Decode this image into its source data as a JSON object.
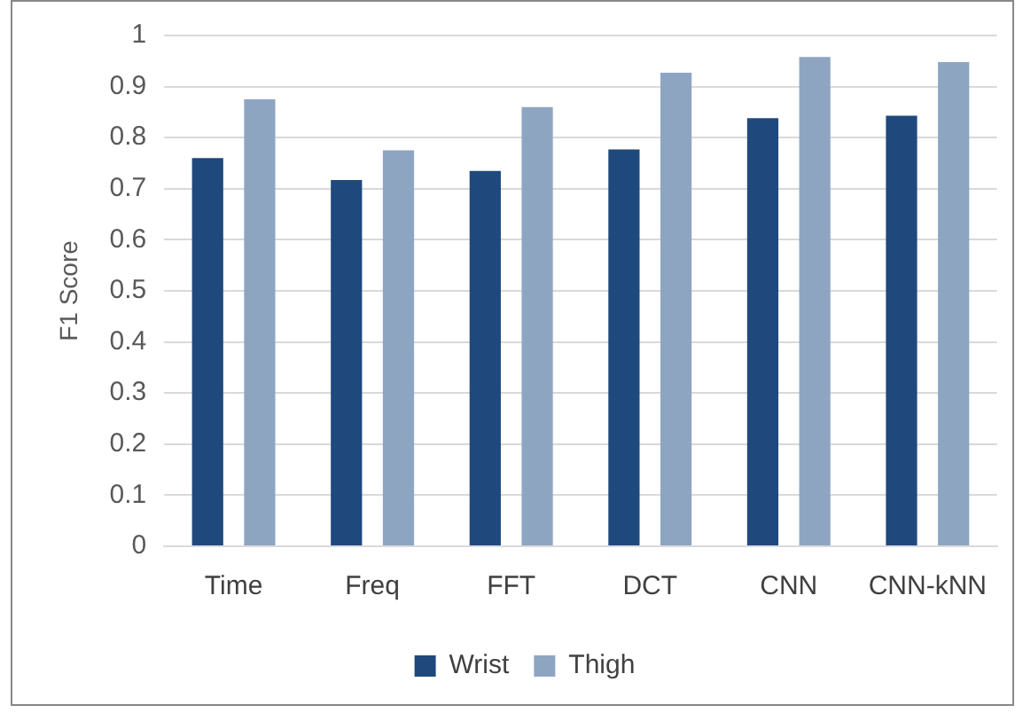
{
  "chart_data": {
    "type": "bar",
    "ylabel": "F1 Score",
    "categories": [
      "Time",
      "Freq",
      "FFT",
      "DCT",
      "CNN",
      "CNN-kNN"
    ],
    "series": [
      {
        "name": "Wrist",
        "color": "#1f497d",
        "values": [
          0.76,
          0.717,
          0.735,
          0.777,
          0.838,
          0.843
        ]
      },
      {
        "name": "Thigh",
        "color": "#8ea5c2",
        "values": [
          0.875,
          0.775,
          0.86,
          0.927,
          0.958,
          0.948
        ]
      }
    ],
    "ylim": [
      0,
      1
    ],
    "yticks": [
      0,
      {
        "value": 0.1,
        "label": "0.1"
      },
      {
        "value": 0.2,
        "label": "0.2"
      },
      {
        "value": 0.3,
        "label": "0.3"
      },
      {
        "value": 0.4,
        "label": "0.4"
      },
      {
        "value": 0.5,
        "label": "0.5"
      },
      {
        "value": 0.6,
        "label": "0.6"
      },
      {
        "value": 0.7,
        "label": "0.7"
      },
      {
        "value": 0.8,
        "label": "0.8"
      },
      {
        "value": 0.9,
        "label": "0.9"
      },
      1
    ],
    "grid": "y",
    "legend": "bottom"
  }
}
